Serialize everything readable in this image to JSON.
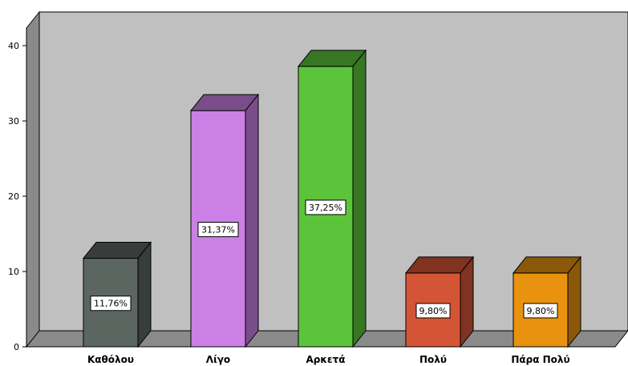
{
  "chart_data": {
    "type": "bar",
    "title": "",
    "xlabel": "",
    "ylabel": "",
    "categories": [
      "Καθόλου",
      "Λίγο",
      "Αρκετά",
      "Πολύ",
      "Πάρα Πολύ"
    ],
    "values": [
      11.76,
      31.37,
      37.25,
      9.8,
      9.8
    ],
    "data_labels": [
      "11,76%",
      "31,37%",
      "37,25%",
      "9,80%",
      "9,80%"
    ],
    "colors": [
      "#5c6660",
      "#cc80e6",
      "#5cc43a",
      "#d45535",
      "#e8920f"
    ],
    "yticks": [
      "0",
      "10",
      "20",
      "30",
      "40"
    ],
    "ylim": [
      0,
      44
    ],
    "grid": false,
    "style": "3d-bar"
  }
}
